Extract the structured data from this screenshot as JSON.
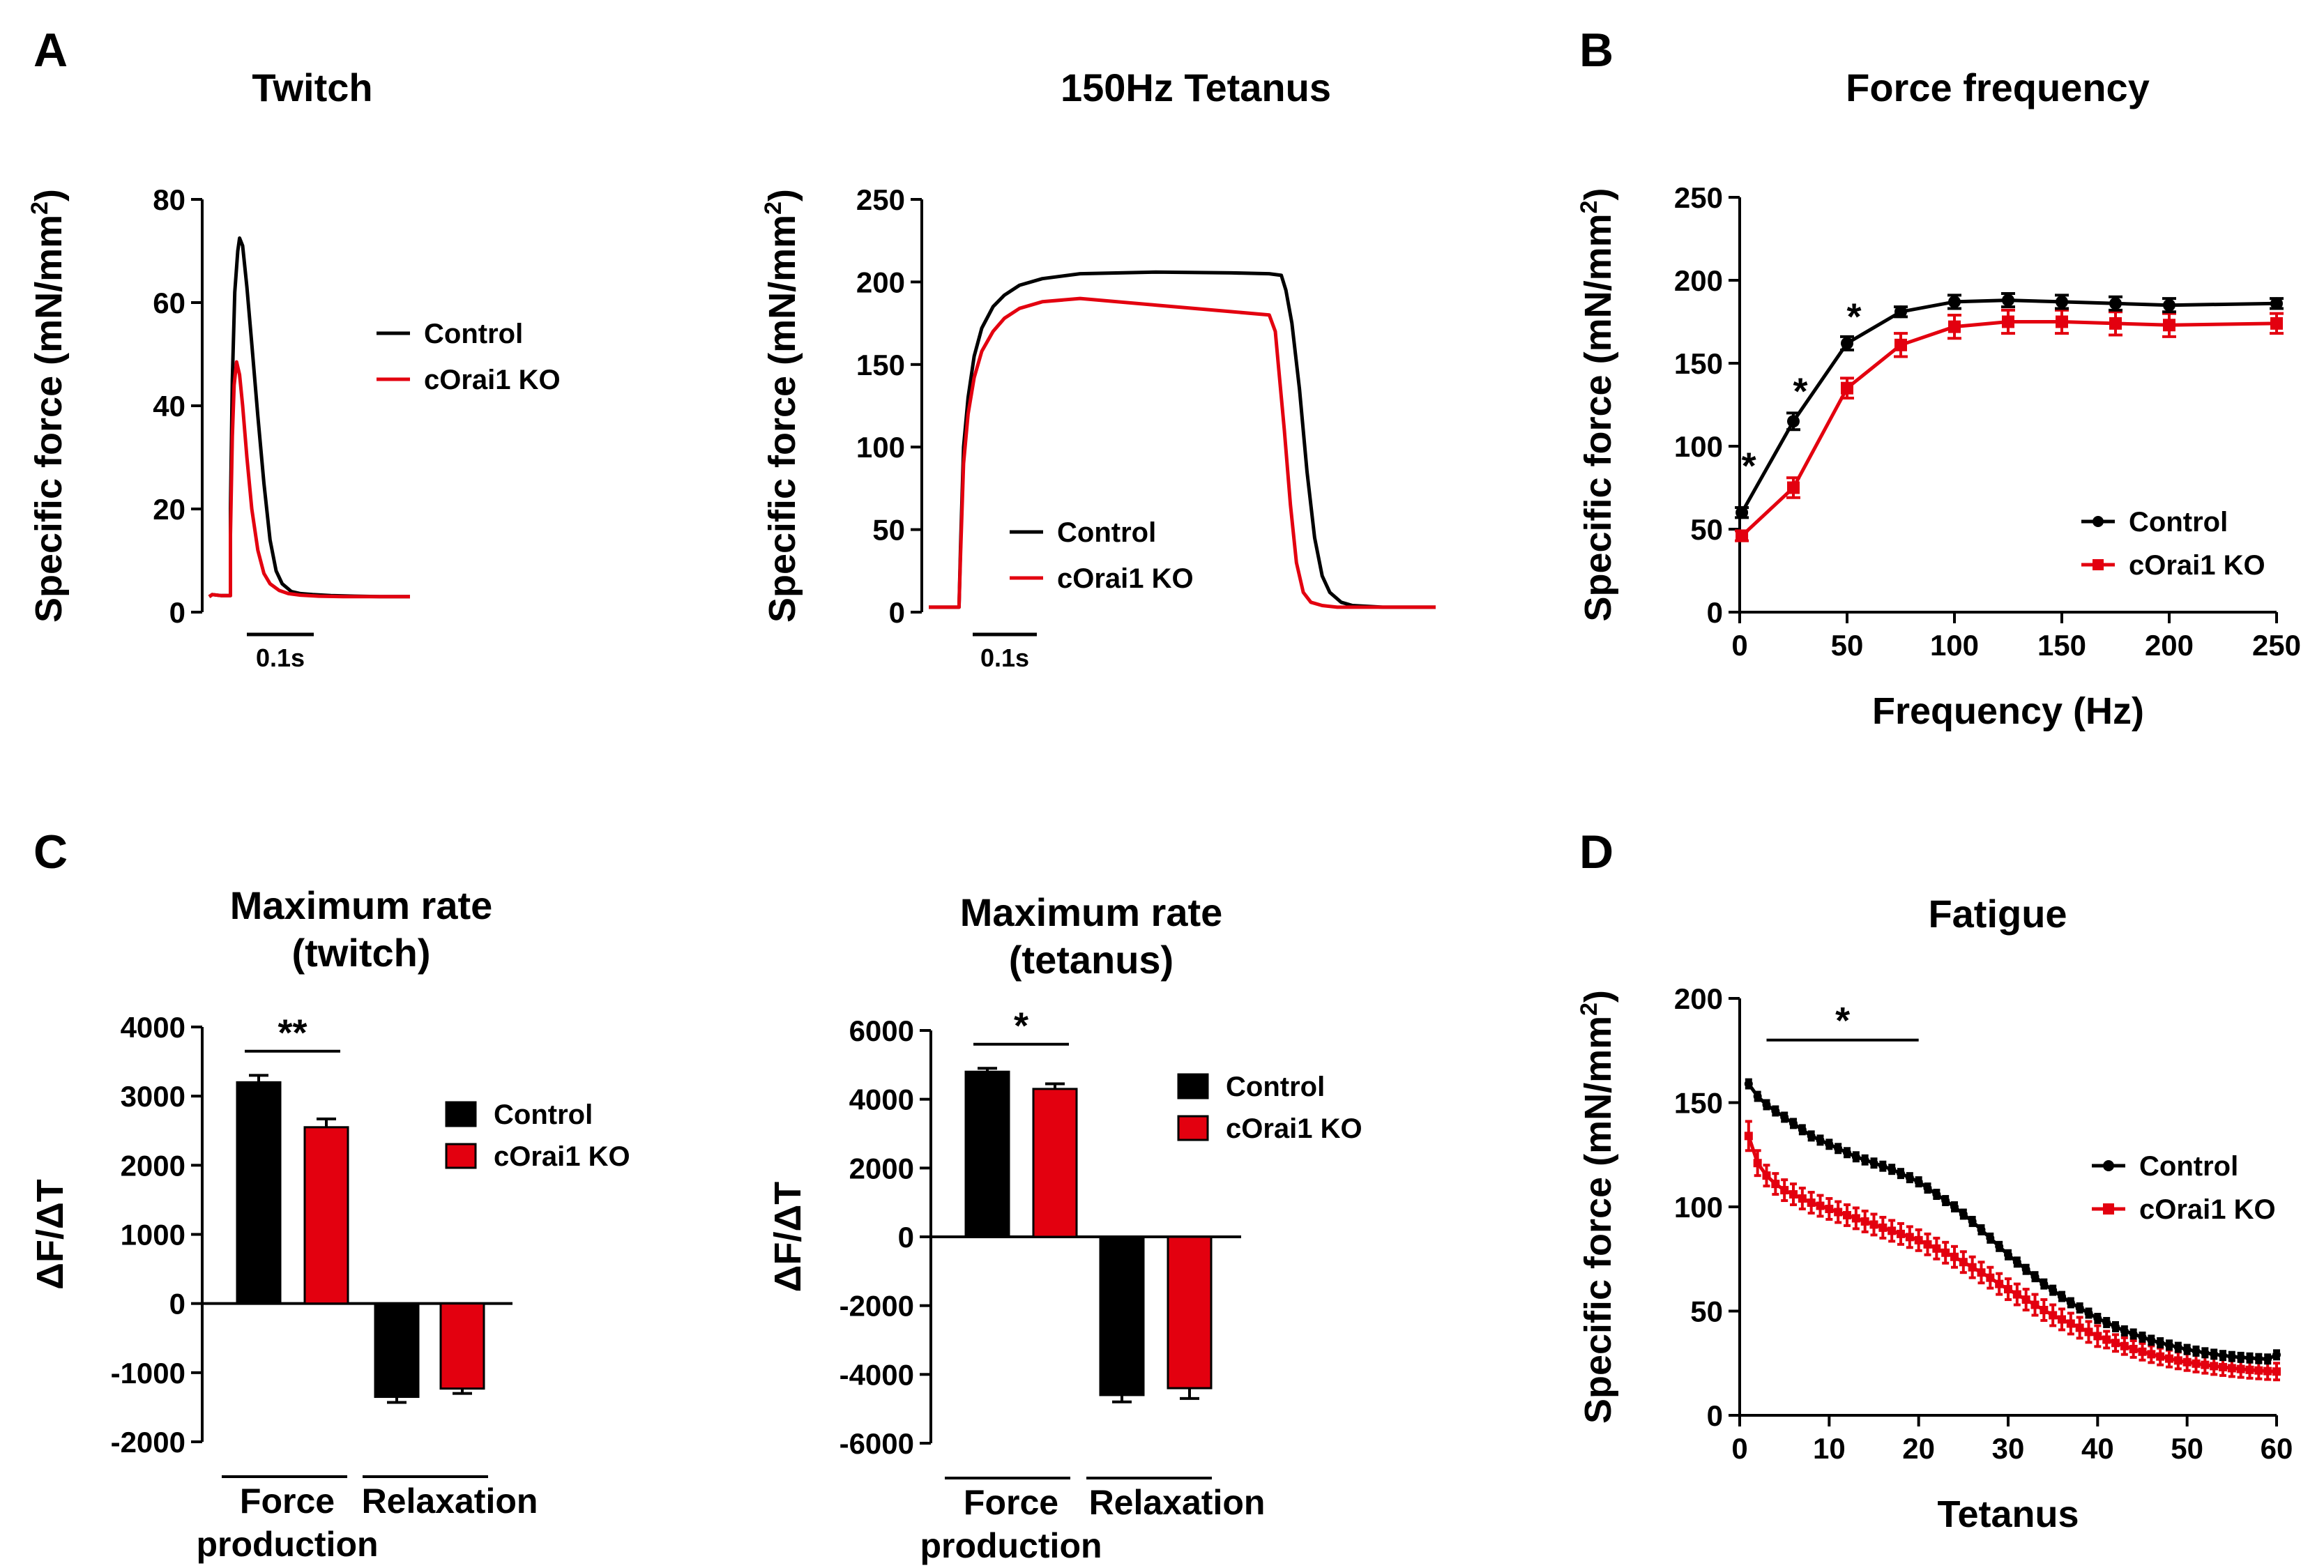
{
  "colors": {
    "control": "#000000",
    "ko": "#e3000f"
  },
  "panels": {
    "a": "A",
    "b": "B",
    "c": "C",
    "d": "D"
  },
  "legend": {
    "control": "Control",
    "ko": "cOrai1 KO"
  },
  "chart_data": [
    {
      "id": "twitch",
      "type": "line",
      "title": "Twitch",
      "ylabel": "Specific force (mN/mm2)",
      "ylabel_main": "Specific force (mN/mm",
      "ylabel_sup": "2",
      "ylabel_close": ")",
      "ylim": [
        0,
        80
      ],
      "yticks": [
        "0",
        "20",
        "40",
        "60",
        "80"
      ],
      "scale_bar": "0.1s",
      "x_unit": "s",
      "xlim": [
        0,
        0.33
      ],
      "series": [
        {
          "name": "Control",
          "x": [
            0,
            0.005,
            0.02,
            0.035,
            0.035,
            0.038,
            0.042,
            0.047,
            0.05,
            0.055,
            0.062,
            0.07,
            0.08,
            0.09,
            0.1,
            0.11,
            0.12,
            0.135,
            0.15,
            0.17,
            0.2,
            0.24,
            0.28,
            0.33
          ],
          "y": [
            3,
            3.4,
            3.2,
            3.2,
            20,
            45,
            62,
            70,
            72.5,
            71,
            63,
            52,
            38,
            25,
            14,
            8,
            5.5,
            4,
            3.6,
            3.4,
            3.2,
            3.1,
            3,
            3
          ]
        },
        {
          "name": "cOrai1 KO",
          "x": [
            0,
            0.005,
            0.02,
            0.035,
            0.035,
            0.038,
            0.041,
            0.045,
            0.05,
            0.055,
            0.062,
            0.07,
            0.08,
            0.09,
            0.1,
            0.115,
            0.13,
            0.15,
            0.18,
            0.22,
            0.28,
            0.33
          ],
          "y": [
            3,
            3.4,
            3.2,
            3.2,
            15,
            34,
            44,
            48.5,
            46,
            40,
            30,
            20,
            12,
            7.5,
            5.5,
            4.2,
            3.6,
            3.3,
            3.1,
            3,
            3,
            3
          ]
        }
      ]
    },
    {
      "id": "tetanus",
      "type": "line",
      "title": "150Hz Tetanus",
      "ylabel": "Specific force (mN/mm2)",
      "ylabel_main": "Specific force (mN/mm",
      "ylabel_sup": "2",
      "ylabel_close": ")",
      "ylim": [
        0,
        250
      ],
      "yticks": [
        "0",
        "50",
        "100",
        "150",
        "200",
        "250"
      ],
      "scale_bar": "0.1s",
      "x_unit": "s",
      "xlim": [
        0,
        0.67
      ],
      "series": [
        {
          "name": "Control",
          "x": [
            0,
            0.04,
            0.042,
            0.046,
            0.052,
            0.06,
            0.07,
            0.085,
            0.1,
            0.12,
            0.15,
            0.2,
            0.3,
            0.4,
            0.45,
            0.466,
            0.472,
            0.48,
            0.49,
            0.5,
            0.51,
            0.52,
            0.53,
            0.545,
            0.56,
            0.6,
            0.67
          ],
          "y": [
            3,
            3,
            40,
            100,
            130,
            155,
            172,
            185,
            192,
            198,
            202,
            205,
            206,
            205.5,
            205,
            204,
            195,
            175,
            135,
            85,
            45,
            22,
            12,
            6,
            4,
            3,
            3
          ]
        },
        {
          "name": "cOrai1 KO",
          "x": [
            0,
            0.04,
            0.042,
            0.046,
            0.052,
            0.06,
            0.07,
            0.085,
            0.1,
            0.12,
            0.15,
            0.2,
            0.3,
            0.4,
            0.45,
            0.458,
            0.462,
            0.47,
            0.478,
            0.486,
            0.495,
            0.505,
            0.52,
            0.54,
            0.6,
            0.67
          ],
          "y": [
            3,
            3,
            35,
            90,
            120,
            142,
            158,
            170,
            178,
            184,
            188,
            190,
            186,
            182,
            180,
            170,
            150,
            110,
            65,
            30,
            12,
            6,
            4,
            3,
            3,
            3
          ]
        }
      ]
    },
    {
      "id": "force-frequency",
      "type": "line",
      "title": "Force frequency",
      "xlabel": "Frequency (Hz)",
      "ylabel": "Specific force (mN/mm2)",
      "ylabel_main": "Specific force (mN/mm",
      "ylabel_sup": "2",
      "ylabel_close": ")",
      "xlim": [
        0,
        250
      ],
      "ylim": [
        0,
        250
      ],
      "xticks": [
        "0",
        "50",
        "100",
        "150",
        "200",
        "250"
      ],
      "yticks": [
        "0",
        "50",
        "100",
        "150",
        "200",
        "250"
      ],
      "x": [
        1,
        25,
        50,
        75,
        100,
        125,
        150,
        175,
        200,
        250
      ],
      "series": [
        {
          "name": "Control",
          "values": [
            60,
            115,
            162,
            181,
            187,
            188,
            187,
            186,
            185,
            186
          ],
          "errors": [
            3,
            5,
            4,
            3,
            4,
            4,
            4,
            4,
            4,
            3
          ]
        },
        {
          "name": "cOrai1 KO",
          "values": [
            46,
            75,
            135,
            161,
            172,
            175,
            175,
            174,
            173,
            174
          ],
          "errors": [
            3,
            6,
            6,
            7,
            7,
            7,
            7,
            7,
            7,
            6
          ]
        }
      ],
      "significance": [
        {
          "x": 1,
          "y": 88,
          "label": "*"
        },
        {
          "x": 25,
          "y": 133,
          "label": "*"
        },
        {
          "x": 50,
          "y": 178,
          "label": "*"
        }
      ]
    },
    {
      "id": "max-rate-twitch",
      "type": "bar",
      "title": "Maximum rate",
      "subtitle": "(twitch)",
      "ylabel": "ΔF/ΔT",
      "ylim": [
        -2000,
        4000
      ],
      "yticks": [
        "4000",
        "3000",
        "2000",
        "1000",
        "0",
        "-1000",
        "-2000"
      ],
      "categories": [
        "Force production",
        "Relaxation"
      ],
      "category_lines": [
        [
          "Force",
          "production"
        ],
        [
          "Relaxation"
        ]
      ],
      "series": [
        {
          "name": "Control",
          "values": [
            3200,
            -1350
          ],
          "errors": [
            100,
            80
          ]
        },
        {
          "name": "cOrai1 KO",
          "values": [
            2550,
            -1230
          ],
          "errors": [
            120,
            70
          ]
        }
      ],
      "significance": {
        "label": "**",
        "y": 3650
      }
    },
    {
      "id": "max-rate-tetanus",
      "type": "bar",
      "title": "Maximum rate",
      "subtitle": "(tetanus)",
      "ylabel": "ΔF/ΔT",
      "ylim": [
        -6000,
        6000
      ],
      "yticks": [
        "6000",
        "4000",
        "2000",
        "0",
        "-2000",
        "-4000",
        "-6000"
      ],
      "categories": [
        "Force production",
        "Relaxation"
      ],
      "category_lines": [
        [
          "Force",
          "production"
        ],
        [
          "Relaxation"
        ]
      ],
      "series": [
        {
          "name": "Control",
          "values": [
            4800,
            -4600
          ],
          "errors": [
            100,
            200
          ]
        },
        {
          "name": "cOrai1 KO",
          "values": [
            4300,
            -4400
          ],
          "errors": [
            150,
            300
          ]
        }
      ],
      "significance": {
        "label": "*",
        "y": 5600
      }
    },
    {
      "id": "fatigue",
      "type": "line",
      "title": "Fatigue",
      "xlabel": "Tetanus",
      "ylabel": "Specific force (mN/mm2)",
      "ylabel_main": "Specific force (mN/mm",
      "ylabel_sup": "2",
      "ylabel_close": ")",
      "xlim": [
        0,
        60
      ],
      "ylim": [
        0,
        200
      ],
      "xticks": [
        "0",
        "10",
        "20",
        "30",
        "40",
        "50",
        "60"
      ],
      "yticks": [
        "0",
        "50",
        "100",
        "150",
        "200"
      ],
      "x": [
        1,
        2,
        3,
        4,
        5,
        6,
        7,
        8,
        9,
        10,
        11,
        12,
        13,
        14,
        15,
        16,
        17,
        18,
        19,
        20,
        21,
        22,
        23,
        24,
        25,
        26,
        27,
        28,
        29,
        30,
        31,
        32,
        33,
        34,
        35,
        36,
        37,
        38,
        39,
        40,
        41,
        42,
        43,
        44,
        45,
        46,
        47,
        48,
        49,
        50,
        51,
        52,
        53,
        54,
        55,
        56,
        57,
        58,
        59,
        60
      ],
      "series": [
        {
          "name": "Control",
          "values": [
            159,
            153,
            149,
            146,
            143,
            140,
            137,
            134,
            132,
            130,
            128,
            126,
            124,
            122.5,
            121,
            119.5,
            118,
            116,
            114,
            112,
            109,
            106,
            103,
            100,
            96.5,
            93,
            89,
            85,
            81,
            77,
            73.5,
            70,
            66.5,
            63,
            60,
            57,
            54,
            51.5,
            49,
            46.5,
            44.5,
            42.5,
            40.5,
            39,
            37.5,
            36,
            34.8,
            33.7,
            32.6,
            31.6,
            30.8,
            30,
            29.3,
            28.7,
            28.2,
            27.8,
            27.5,
            27.2,
            27,
            29
          ],
          "errors": [
            2,
            2,
            2,
            2,
            2,
            2,
            2,
            2,
            2,
            2,
            2,
            2,
            2,
            2,
            2,
            2,
            2,
            2,
            2,
            2,
            2,
            2,
            2,
            2,
            2,
            2,
            2,
            2,
            2,
            2,
            2,
            2,
            2,
            2,
            2,
            2,
            2,
            2,
            2,
            2,
            2,
            2,
            2,
            2,
            2,
            2,
            2,
            2,
            2,
            2,
            2,
            2,
            2,
            2,
            2,
            2,
            2,
            2,
            2,
            2
          ]
        },
        {
          "name": "cOrai1 KO",
          "values": [
            134,
            121,
            115,
            111,
            108,
            106,
            104,
            102,
            100.5,
            99,
            97.5,
            96,
            94.5,
            93,
            91.5,
            90,
            88.5,
            87,
            85.5,
            84,
            82,
            80,
            78,
            76,
            73.5,
            71,
            68.5,
            66,
            63,
            60.5,
            58,
            55.5,
            53,
            50.5,
            48,
            46,
            44,
            42,
            40,
            38,
            36.3,
            34.7,
            33.2,
            31.8,
            30.5,
            29.3,
            28.2,
            27.2,
            26.3,
            25.5,
            24.8,
            24.2,
            23.6,
            23.1,
            22.6,
            22.2,
            21.8,
            21.5,
            21.2,
            21
          ],
          "errors": [
            7,
            6,
            5,
            5,
            5,
            5,
            5,
            5,
            5,
            5,
            5,
            5,
            5,
            5,
            5,
            5,
            5,
            5,
            5,
            5,
            5,
            5,
            5,
            5,
            5,
            5,
            5,
            5,
            5,
            5,
            5,
            5,
            5,
            5,
            5,
            5,
            5,
            5,
            5,
            5,
            4,
            4,
            4,
            4,
            4,
            4,
            4,
            4,
            4,
            4,
            4,
            4,
            4,
            4,
            4,
            4,
            4,
            4,
            4,
            4
          ]
        }
      ],
      "significance": {
        "label": "*",
        "x_from": 3,
        "x_to": 20,
        "y": 180
      }
    }
  ]
}
